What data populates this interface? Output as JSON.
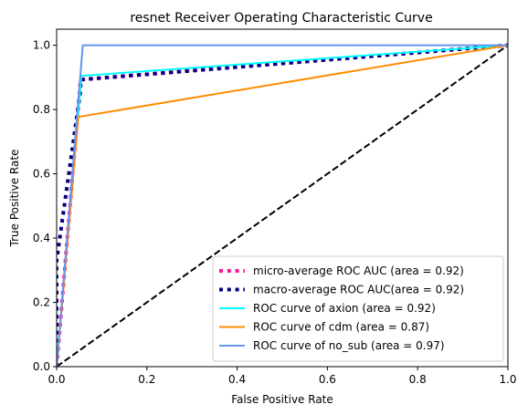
{
  "chart_data": {
    "type": "line",
    "title": "resnet Receiver Operating Characteristic Curve",
    "xlabel": "False Positive Rate",
    "ylabel": "True Positive Rate",
    "xlim": [
      0.0,
      1.0
    ],
    "ylim": [
      0.0,
      1.05
    ],
    "xticks": [
      {
        "value": 0.0,
        "label": "0.0"
      },
      {
        "value": 0.2,
        "label": "0.2"
      },
      {
        "value": 0.4,
        "label": "0.4"
      },
      {
        "value": 0.6,
        "label": "0.6"
      },
      {
        "value": 0.8,
        "label": "0.8"
      },
      {
        "value": 1.0,
        "label": "1.0"
      }
    ],
    "yticks": [
      {
        "value": 0.0,
        "label": "0.0"
      },
      {
        "value": 0.2,
        "label": "0.2"
      },
      {
        "value": 0.4,
        "label": "0.4"
      },
      {
        "value": 0.6,
        "label": "0.6"
      },
      {
        "value": 0.8,
        "label": "0.8"
      },
      {
        "value": 1.0,
        "label": "1.0"
      }
    ],
    "grid": false,
    "legend_position": "lower-right",
    "series": [
      {
        "key": "micro",
        "name": "micro-average ROC AUC (area = 0.92)",
        "color": "#ff1493",
        "style": "dotted",
        "width": 4,
        "x": [
          0.0,
          0.053,
          1.0
        ],
        "y": [
          0.0,
          0.893,
          1.0
        ]
      },
      {
        "key": "macro",
        "name": "macro-average ROC AUC(area = 0.92)",
        "color": "#000080",
        "style": "dotted",
        "width": 4,
        "x": [
          0.0,
          0.0,
          0.053,
          0.053,
          1.0
        ],
        "y": [
          0.0,
          0.33,
          0.86,
          0.893,
          1.0
        ]
      },
      {
        "key": "axion",
        "name": "ROC curve of axion (area = 0.92)",
        "color": "#00ffff",
        "style": "solid",
        "width": 2,
        "x": [
          0.0,
          0.055,
          1.0
        ],
        "y": [
          0.0,
          0.905,
          1.0
        ]
      },
      {
        "key": "cdm",
        "name": "ROC curve of cdm (area = 0.87)",
        "color": "#ff8c00",
        "style": "solid",
        "width": 2,
        "x": [
          0.0,
          0.048,
          1.0
        ],
        "y": [
          0.0,
          0.777,
          1.0
        ]
      },
      {
        "key": "no_sub",
        "name": "ROC curve of no_sub (area = 0.97)",
        "color": "#6495ed",
        "style": "solid",
        "width": 2,
        "x": [
          0.0,
          0.058,
          1.0
        ],
        "y": [
          0.0,
          1.0,
          1.0
        ]
      }
    ],
    "reference_line": {
      "color": "#000000",
      "style": "dashed",
      "width": 2,
      "x": [
        0.0,
        1.0
      ],
      "y": [
        0.0,
        1.0
      ]
    }
  }
}
